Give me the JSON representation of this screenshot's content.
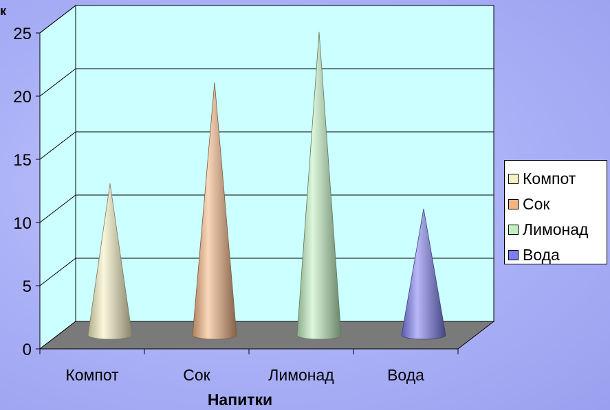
{
  "chart_data": {
    "type": "bar",
    "shape": "cone",
    "categories": [
      "Компот",
      "Сок",
      "Лимонад",
      "Вода"
    ],
    "values": [
      12,
      20,
      24,
      10
    ],
    "colors": [
      "#f6f1c2",
      "#f4b482",
      "#c0f0c0",
      "#7d7ef0"
    ],
    "xlabel": "Напитки",
    "ylabel_fragment": "к",
    "yticks": [
      0,
      5,
      10,
      15,
      20,
      25
    ],
    "ylim": [
      0,
      25
    ],
    "grid": true,
    "legend_position": "right",
    "legend": [
      "Компот",
      "Сок",
      "Лимонад",
      "Вода"
    ],
    "wall_color": "#ccffff",
    "floor_color": "#7a7a7a"
  }
}
